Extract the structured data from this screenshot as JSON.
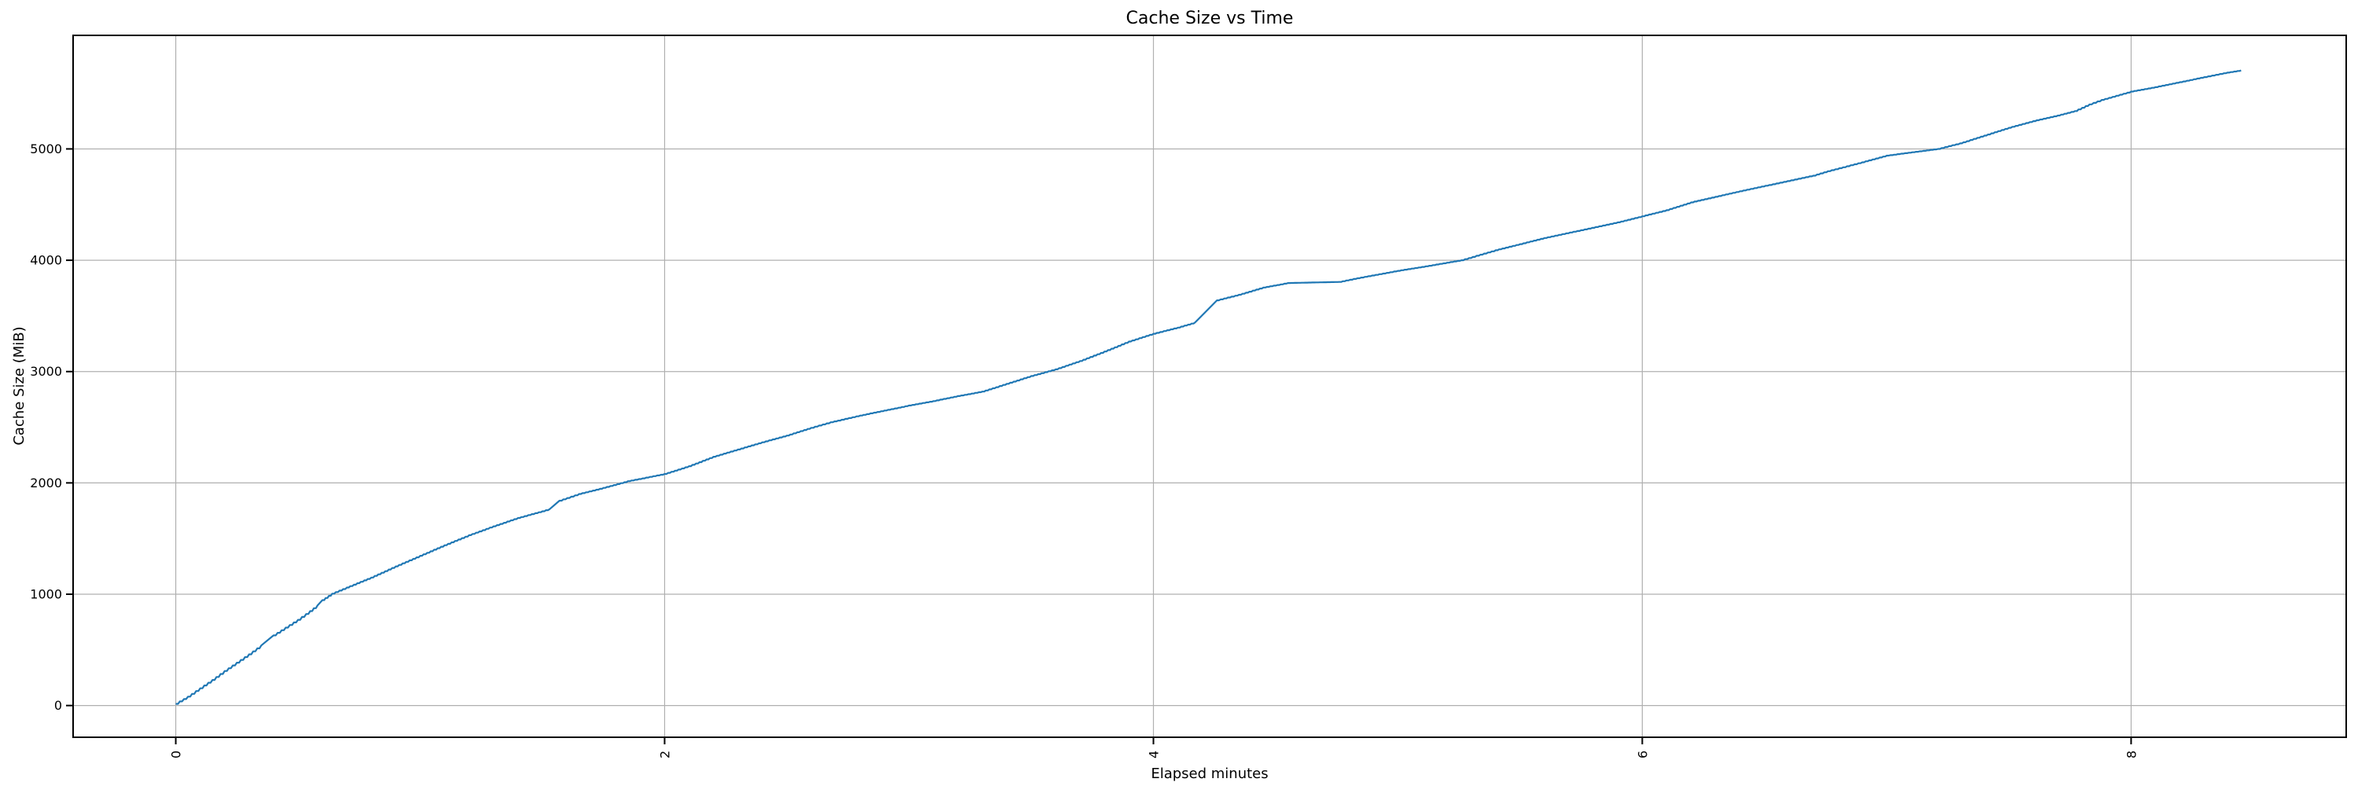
{
  "figure": {
    "background": "#ffffff"
  },
  "chart_data": {
    "type": "line",
    "title": "Cache Size vs Time",
    "xlabel": "Elapsed minutes",
    "ylabel": "Cache Size (MiB)",
    "xlim": [
      -0.42,
      8.88
    ],
    "ylim": [
      -285,
      6020
    ],
    "xticks": [
      "0",
      "2",
      "4",
      "6",
      "8"
    ],
    "xtick_values": [
      0,
      2,
      4,
      6,
      8
    ],
    "yticks": [
      "0",
      "1000",
      "2000",
      "3000",
      "4000",
      "5000"
    ],
    "ytick_values": [
      0,
      1000,
      2000,
      3000,
      4000,
      5000
    ],
    "grid": true,
    "x_tick_rotation_deg": 90,
    "legend_position": "none",
    "line_color": "#1f77b4",
    "grid_color": "#b0b0b0",
    "spine_color": "#000000",
    "series": [
      {
        "name": "cache_size_mib",
        "points": [
          [
            0.0,
            15
          ],
          [
            0.05,
            80
          ],
          [
            0.1,
            155
          ],
          [
            0.15,
            230
          ],
          [
            0.2,
            310
          ],
          [
            0.25,
            385
          ],
          [
            0.3,
            460
          ],
          [
            0.35,
            540
          ],
          [
            0.4,
            630
          ],
          [
            0.45,
            700
          ],
          [
            0.5,
            770
          ],
          [
            0.55,
            848
          ],
          [
            0.58,
            900
          ],
          [
            0.6,
            947
          ],
          [
            0.64,
            1005
          ],
          [
            0.7,
            1060
          ],
          [
            0.8,
            1150
          ],
          [
            0.9,
            1250
          ],
          [
            1.0,
            1345
          ],
          [
            1.1,
            1440
          ],
          [
            1.2,
            1530
          ],
          [
            1.3,
            1610
          ],
          [
            1.4,
            1685
          ],
          [
            1.5,
            1745
          ],
          [
            1.53,
            1765
          ],
          [
            1.57,
            1840
          ],
          [
            1.65,
            1900
          ],
          [
            1.75,
            1955
          ],
          [
            1.85,
            2015
          ],
          [
            2.0,
            2080
          ],
          [
            2.1,
            2150
          ],
          [
            2.2,
            2235
          ],
          [
            2.3,
            2300
          ],
          [
            2.4,
            2365
          ],
          [
            2.5,
            2425
          ],
          [
            2.6,
            2495
          ],
          [
            2.68,
            2545
          ],
          [
            2.8,
            2605
          ],
          [
            2.9,
            2650
          ],
          [
            3.0,
            2695
          ],
          [
            3.1,
            2735
          ],
          [
            3.2,
            2780
          ],
          [
            3.3,
            2820
          ],
          [
            3.4,
            2890
          ],
          [
            3.5,
            2960
          ],
          [
            3.6,
            3020
          ],
          [
            3.7,
            3095
          ],
          [
            3.8,
            3180
          ],
          [
            3.9,
            3270
          ],
          [
            4.0,
            3340
          ],
          [
            4.1,
            3395
          ],
          [
            4.17,
            3440
          ],
          [
            4.26,
            3640
          ],
          [
            4.35,
            3690
          ],
          [
            4.45,
            3755
          ],
          [
            4.55,
            3795
          ],
          [
            4.65,
            3800
          ],
          [
            4.76,
            3805
          ],
          [
            4.85,
            3845
          ],
          [
            5.0,
            3905
          ],
          [
            5.1,
            3940
          ],
          [
            5.26,
            4000
          ],
          [
            5.4,
            4090
          ],
          [
            5.5,
            4145
          ],
          [
            5.6,
            4200
          ],
          [
            5.75,
            4270
          ],
          [
            5.9,
            4340
          ],
          [
            6.0,
            4395
          ],
          [
            6.1,
            4450
          ],
          [
            6.2,
            4520
          ],
          [
            6.3,
            4570
          ],
          [
            6.4,
            4620
          ],
          [
            6.55,
            4690
          ],
          [
            6.7,
            4760
          ],
          [
            6.76,
            4800
          ],
          [
            6.9,
            4880
          ],
          [
            7.0,
            4940
          ],
          [
            7.21,
            5000
          ],
          [
            7.3,
            5050
          ],
          [
            7.4,
            5120
          ],
          [
            7.5,
            5190
          ],
          [
            7.6,
            5250
          ],
          [
            7.7,
            5300
          ],
          [
            7.77,
            5340
          ],
          [
            7.83,
            5400
          ],
          [
            7.88,
            5440
          ],
          [
            8.0,
            5515
          ],
          [
            8.1,
            5555
          ],
          [
            8.2,
            5600
          ],
          [
            8.3,
            5645
          ],
          [
            8.38,
            5680
          ],
          [
            8.45,
            5705
          ]
        ]
      }
    ]
  }
}
